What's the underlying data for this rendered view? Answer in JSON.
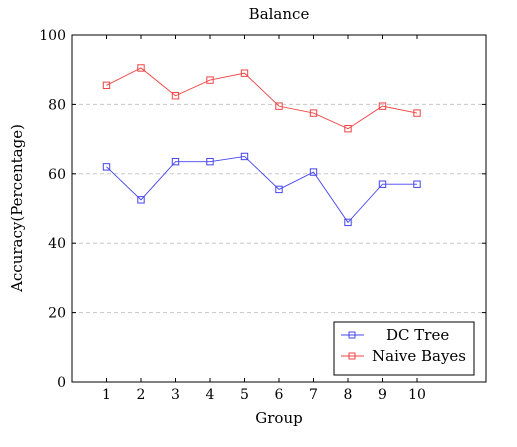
{
  "chart_data": {
    "type": "line",
    "title": "Balance",
    "xlabel": "Group",
    "ylabel": "Accuracy(Percentage)",
    "x": [
      1,
      2,
      3,
      4,
      5,
      6,
      7,
      8,
      9,
      10
    ],
    "xlim": [
      0,
      12
    ],
    "ylim": [
      0,
      100
    ],
    "yticks": [
      0,
      20,
      40,
      60,
      80,
      100
    ],
    "grid": "horizontal-dashed",
    "legend_position": "bottom-right",
    "series": [
      {
        "name": "DC Tree",
        "color": "#4444ee",
        "marker": "square",
        "values": [
          62,
          52.5,
          63.5,
          63.5,
          65,
          55.5,
          60.5,
          46,
          57,
          57
        ]
      },
      {
        "name": "Naive Bayes",
        "color": "#ee4444",
        "marker": "square",
        "values": [
          85.5,
          90.5,
          82.5,
          87,
          89,
          79.5,
          77.5,
          73,
          79.5,
          77.5
        ]
      }
    ]
  }
}
